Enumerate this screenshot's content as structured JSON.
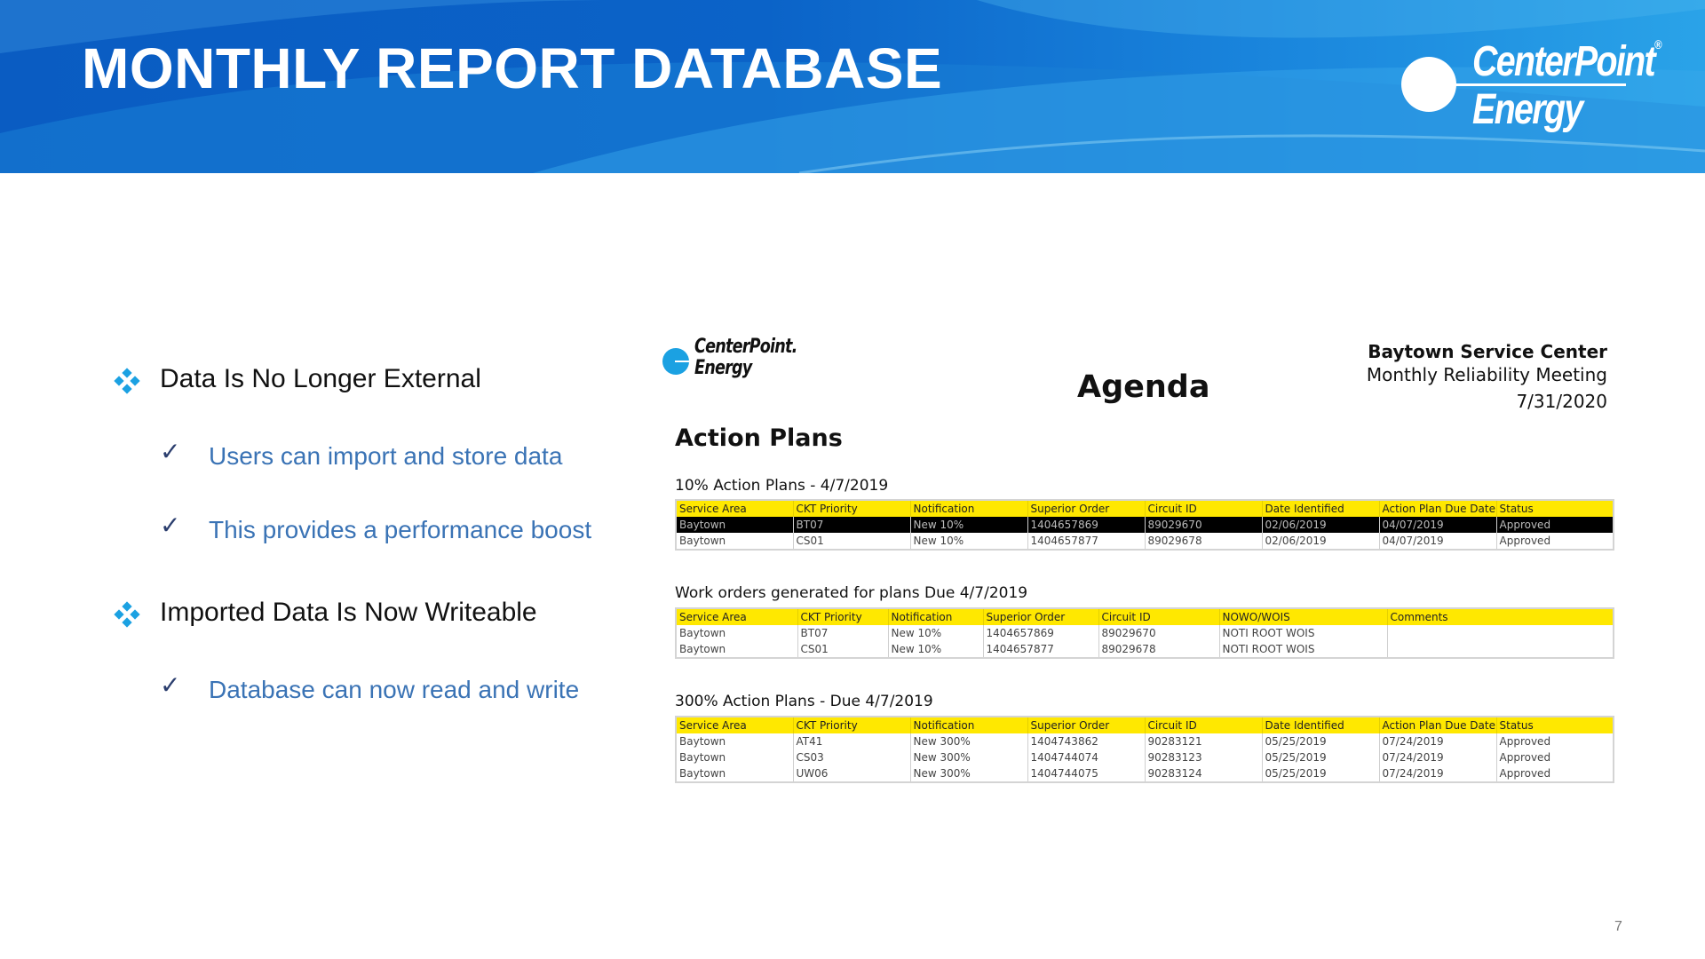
{
  "slide": {
    "title": "MONTHLY REPORT DATABASE",
    "page_number": "7"
  },
  "logo": {
    "line1": "CenterPoint",
    "line2": "Energy",
    "reg": "®"
  },
  "bullets": [
    {
      "text": "Data Is No Longer External",
      "icon": "diamond-bullet-icon"
    },
    {
      "text": "Users can import and store data",
      "icon": "check-icon"
    },
    {
      "text": "This provides a performance boost",
      "icon": "check-icon"
    },
    {
      "text": "Imported Data Is Now Writeable",
      "icon": "diamond-bullet-icon"
    },
    {
      "text": "Database can now read and write",
      "icon": "check-icon"
    }
  ],
  "doc": {
    "logo_line1": "CenterPoint.",
    "logo_line2": "Energy",
    "heading": "Agenda",
    "center_name": "Baytown Service Center",
    "meeting": "Monthly Reliability Meeting",
    "date": "7/31/2020",
    "section": "Action Plans",
    "table1": {
      "caption": "10% Action Plans -  4/7/2019",
      "headers": [
        "Service Area",
        "CKT Priority",
        "Notification",
        "Superior Order",
        "Circuit ID",
        "Date Identified",
        "Action Plan Due Date",
        "Status"
      ],
      "rows": [
        [
          "Baytown",
          "BT07",
          "New 10%",
          "1404657869",
          "89029670",
          "02/06/2019",
          "04/07/2019",
          "Approved"
        ],
        [
          "Baytown",
          "CS01",
          "New 10%",
          "1404657877",
          "89029678",
          "02/06/2019",
          "04/07/2019",
          "Approved"
        ]
      ]
    },
    "table2": {
      "caption": "Work orders generated for plans Due  4/7/2019",
      "headers": [
        "Service Area",
        "CKT Priority",
        "Notification",
        "Superior Order",
        "Circuit ID",
        "NOWO/WOIS",
        "Comments"
      ],
      "rows": [
        [
          "Baytown",
          "BT07",
          "New 10%",
          "1404657869",
          "89029670",
          "NOTI ROOT WOIS",
          ""
        ],
        [
          "Baytown",
          "CS01",
          "New 10%",
          "1404657877",
          "89029678",
          "NOTI ROOT WOIS",
          ""
        ]
      ]
    },
    "table3": {
      "caption": "300% Action Plans - Due  4/7/2019",
      "headers": [
        "Service Area",
        "CKT Priority",
        "Notification",
        "Superior Order",
        "Circuit ID",
        "Date Identified",
        "Action Plan Due Date",
        "Status"
      ],
      "rows": [
        [
          "Baytown",
          "AT41",
          "New 300%",
          "1404743862",
          "90283121",
          "05/25/2019",
          "07/24/2019",
          "Approved"
        ],
        [
          "Baytown",
          "CS03",
          "New 300%",
          "1404744074",
          "90283123",
          "05/25/2019",
          "07/24/2019",
          "Approved"
        ],
        [
          "Baytown",
          "UW06",
          "New 300%",
          "1404744075",
          "90283124",
          "05/25/2019",
          "07/24/2019",
          "Approved"
        ]
      ]
    }
  },
  "colors": {
    "banner": "#0b63c8",
    "header_fill": "#ffe800",
    "sub_bullet_text": "#3a73b5",
    "diamond": "#1ba1e2"
  }
}
